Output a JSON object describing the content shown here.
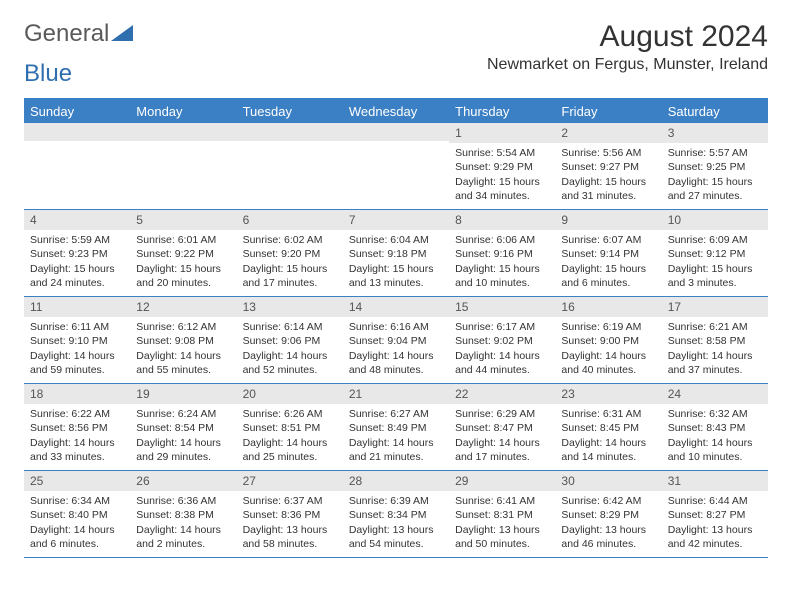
{
  "logo": {
    "text1": "General",
    "text2": "Blue",
    "color1": "#6a6a6a",
    "color2": "#2f6fb0"
  },
  "title": "August 2024",
  "location": "Newmarket on Fergus, Munster, Ireland",
  "header_bg": "#3b7fc4",
  "daynum_bg": "#e8e8e8",
  "border_color": "#3b7fc4",
  "weekdays": [
    "Sunday",
    "Monday",
    "Tuesday",
    "Wednesday",
    "Thursday",
    "Friday",
    "Saturday"
  ],
  "weeks": [
    [
      {
        "n": "",
        "sr": "",
        "ss": "",
        "dl": ""
      },
      {
        "n": "",
        "sr": "",
        "ss": "",
        "dl": ""
      },
      {
        "n": "",
        "sr": "",
        "ss": "",
        "dl": ""
      },
      {
        "n": "",
        "sr": "",
        "ss": "",
        "dl": ""
      },
      {
        "n": "1",
        "sr": "Sunrise: 5:54 AM",
        "ss": "Sunset: 9:29 PM",
        "dl": "Daylight: 15 hours and 34 minutes."
      },
      {
        "n": "2",
        "sr": "Sunrise: 5:56 AM",
        "ss": "Sunset: 9:27 PM",
        "dl": "Daylight: 15 hours and 31 minutes."
      },
      {
        "n": "3",
        "sr": "Sunrise: 5:57 AM",
        "ss": "Sunset: 9:25 PM",
        "dl": "Daylight: 15 hours and 27 minutes."
      }
    ],
    [
      {
        "n": "4",
        "sr": "Sunrise: 5:59 AM",
        "ss": "Sunset: 9:23 PM",
        "dl": "Daylight: 15 hours and 24 minutes."
      },
      {
        "n": "5",
        "sr": "Sunrise: 6:01 AM",
        "ss": "Sunset: 9:22 PM",
        "dl": "Daylight: 15 hours and 20 minutes."
      },
      {
        "n": "6",
        "sr": "Sunrise: 6:02 AM",
        "ss": "Sunset: 9:20 PM",
        "dl": "Daylight: 15 hours and 17 minutes."
      },
      {
        "n": "7",
        "sr": "Sunrise: 6:04 AM",
        "ss": "Sunset: 9:18 PM",
        "dl": "Daylight: 15 hours and 13 minutes."
      },
      {
        "n": "8",
        "sr": "Sunrise: 6:06 AM",
        "ss": "Sunset: 9:16 PM",
        "dl": "Daylight: 15 hours and 10 minutes."
      },
      {
        "n": "9",
        "sr": "Sunrise: 6:07 AM",
        "ss": "Sunset: 9:14 PM",
        "dl": "Daylight: 15 hours and 6 minutes."
      },
      {
        "n": "10",
        "sr": "Sunrise: 6:09 AM",
        "ss": "Sunset: 9:12 PM",
        "dl": "Daylight: 15 hours and 3 minutes."
      }
    ],
    [
      {
        "n": "11",
        "sr": "Sunrise: 6:11 AM",
        "ss": "Sunset: 9:10 PM",
        "dl": "Daylight: 14 hours and 59 minutes."
      },
      {
        "n": "12",
        "sr": "Sunrise: 6:12 AM",
        "ss": "Sunset: 9:08 PM",
        "dl": "Daylight: 14 hours and 55 minutes."
      },
      {
        "n": "13",
        "sr": "Sunrise: 6:14 AM",
        "ss": "Sunset: 9:06 PM",
        "dl": "Daylight: 14 hours and 52 minutes."
      },
      {
        "n": "14",
        "sr": "Sunrise: 6:16 AM",
        "ss": "Sunset: 9:04 PM",
        "dl": "Daylight: 14 hours and 48 minutes."
      },
      {
        "n": "15",
        "sr": "Sunrise: 6:17 AM",
        "ss": "Sunset: 9:02 PM",
        "dl": "Daylight: 14 hours and 44 minutes."
      },
      {
        "n": "16",
        "sr": "Sunrise: 6:19 AM",
        "ss": "Sunset: 9:00 PM",
        "dl": "Daylight: 14 hours and 40 minutes."
      },
      {
        "n": "17",
        "sr": "Sunrise: 6:21 AM",
        "ss": "Sunset: 8:58 PM",
        "dl": "Daylight: 14 hours and 37 minutes."
      }
    ],
    [
      {
        "n": "18",
        "sr": "Sunrise: 6:22 AM",
        "ss": "Sunset: 8:56 PM",
        "dl": "Daylight: 14 hours and 33 minutes."
      },
      {
        "n": "19",
        "sr": "Sunrise: 6:24 AM",
        "ss": "Sunset: 8:54 PM",
        "dl": "Daylight: 14 hours and 29 minutes."
      },
      {
        "n": "20",
        "sr": "Sunrise: 6:26 AM",
        "ss": "Sunset: 8:51 PM",
        "dl": "Daylight: 14 hours and 25 minutes."
      },
      {
        "n": "21",
        "sr": "Sunrise: 6:27 AM",
        "ss": "Sunset: 8:49 PM",
        "dl": "Daylight: 14 hours and 21 minutes."
      },
      {
        "n": "22",
        "sr": "Sunrise: 6:29 AM",
        "ss": "Sunset: 8:47 PM",
        "dl": "Daylight: 14 hours and 17 minutes."
      },
      {
        "n": "23",
        "sr": "Sunrise: 6:31 AM",
        "ss": "Sunset: 8:45 PM",
        "dl": "Daylight: 14 hours and 14 minutes."
      },
      {
        "n": "24",
        "sr": "Sunrise: 6:32 AM",
        "ss": "Sunset: 8:43 PM",
        "dl": "Daylight: 14 hours and 10 minutes."
      }
    ],
    [
      {
        "n": "25",
        "sr": "Sunrise: 6:34 AM",
        "ss": "Sunset: 8:40 PM",
        "dl": "Daylight: 14 hours and 6 minutes."
      },
      {
        "n": "26",
        "sr": "Sunrise: 6:36 AM",
        "ss": "Sunset: 8:38 PM",
        "dl": "Daylight: 14 hours and 2 minutes."
      },
      {
        "n": "27",
        "sr": "Sunrise: 6:37 AM",
        "ss": "Sunset: 8:36 PM",
        "dl": "Daylight: 13 hours and 58 minutes."
      },
      {
        "n": "28",
        "sr": "Sunrise: 6:39 AM",
        "ss": "Sunset: 8:34 PM",
        "dl": "Daylight: 13 hours and 54 minutes."
      },
      {
        "n": "29",
        "sr": "Sunrise: 6:41 AM",
        "ss": "Sunset: 8:31 PM",
        "dl": "Daylight: 13 hours and 50 minutes."
      },
      {
        "n": "30",
        "sr": "Sunrise: 6:42 AM",
        "ss": "Sunset: 8:29 PM",
        "dl": "Daylight: 13 hours and 46 minutes."
      },
      {
        "n": "31",
        "sr": "Sunrise: 6:44 AM",
        "ss": "Sunset: 8:27 PM",
        "dl": "Daylight: 13 hours and 42 minutes."
      }
    ]
  ]
}
